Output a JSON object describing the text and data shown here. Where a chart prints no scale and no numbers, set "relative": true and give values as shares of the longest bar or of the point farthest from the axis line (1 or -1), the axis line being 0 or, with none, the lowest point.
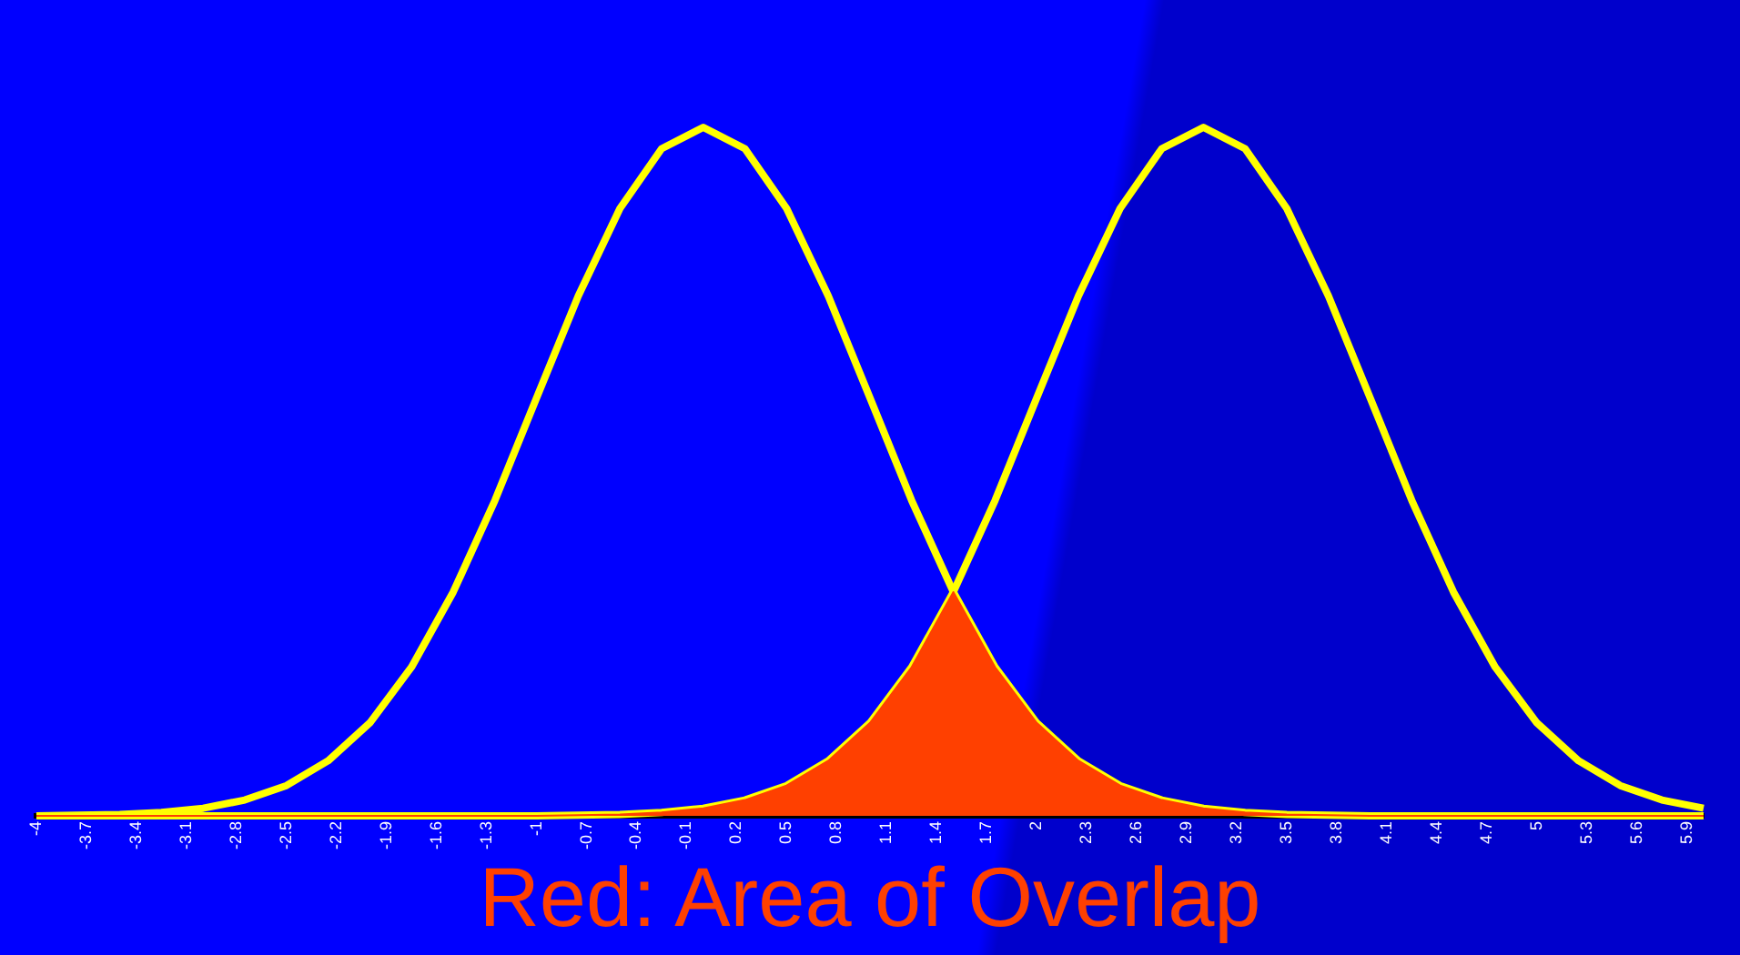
{
  "chart_data": {
    "type": "line",
    "title": "Red: Area of Overlap",
    "relative": true,
    "grid": false,
    "legend": false,
    "marker": "none",
    "line_style": "solid",
    "x": [
      -4,
      -3.75,
      -3.5,
      -3.25,
      -3,
      -2.75,
      -2.5,
      -2.25,
      -2,
      -1.75,
      -1.5,
      -1.25,
      -1,
      -0.75,
      -0.5,
      -0.25,
      0,
      0.25,
      0.5,
      0.75,
      1,
      1.25,
      1.5,
      1.75,
      2,
      2.25,
      2.5,
      2.75,
      3,
      3.25,
      3.5,
      3.75,
      4,
      4.25,
      4.5,
      4.75,
      5,
      5.25,
      5.5,
      5.75,
      6
    ],
    "xlim": [
      -4,
      6
    ],
    "xticks": [
      -4,
      -3.7,
      -3.4,
      -3.1,
      -2.8,
      -2.5,
      -2.2,
      -1.9,
      -1.6,
      -1.3,
      -1,
      -0.7,
      -0.4,
      -0.1,
      0.2,
      0.5,
      0.8,
      1.1,
      1.4,
      1.7,
      2,
      2.3,
      2.6,
      2.9,
      3.2,
      3.5,
      3.8,
      4.1,
      4.4,
      4.7,
      5,
      5.3,
      5.6,
      5.9
    ],
    "series": [
      {
        "type": "area",
        "color": "#ff4000",
        "values": [
          0,
          0,
          0,
          0,
          0,
          0,
          0,
          0,
          0,
          0,
          0,
          0,
          0,
          0.001,
          0.002,
          0.005,
          0.011,
          0.023,
          0.044,
          0.08,
          0.135,
          0.216,
          0.325,
          0.216,
          0.135,
          0.08,
          0.044,
          0.023,
          0.011,
          0.005,
          0.002,
          0.001,
          0,
          0,
          0,
          0,
          0,
          0,
          0,
          0,
          0
        ]
      },
      {
        "color": "#ffff00",
        "values": [
          0,
          0.001,
          0.002,
          0.005,
          0.011,
          0.023,
          0.044,
          0.08,
          0.135,
          0.216,
          0.325,
          0.458,
          0.607,
          0.755,
          0.882,
          0.969,
          1,
          0.969,
          0.882,
          0.755,
          0.607,
          0.458,
          0.325,
          0.216,
          0.135,
          0.08,
          0.044,
          0.023,
          0.011,
          0.005,
          0.002,
          0.001,
          0,
          0,
          0,
          0,
          0,
          0,
          0,
          0,
          0
        ]
      },
      {
        "color": "#ffff00",
        "values": [
          0,
          0,
          0,
          0,
          0,
          0,
          0,
          0,
          0,
          0,
          0,
          0,
          0,
          0.001,
          0.002,
          0.005,
          0.011,
          0.023,
          0.044,
          0.08,
          0.135,
          0.216,
          0.325,
          0.458,
          0.607,
          0.755,
          0.882,
          0.969,
          1,
          0.969,
          0.882,
          0.755,
          0.607,
          0.458,
          0.325,
          0.216,
          0.135,
          0.08,
          0.044,
          0.023,
          0.011
        ]
      }
    ]
  }
}
